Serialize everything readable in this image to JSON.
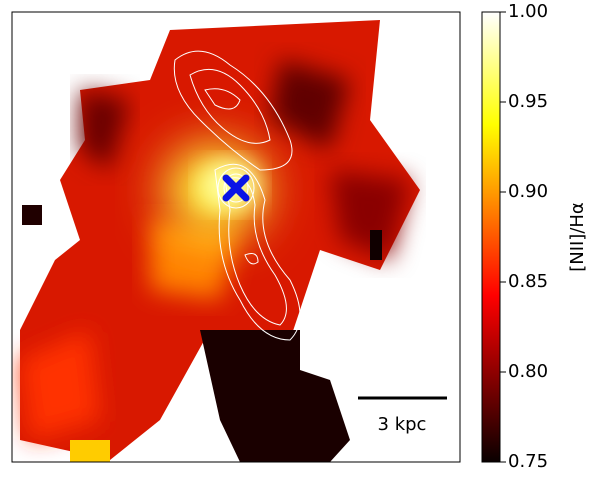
{
  "chart_data": {
    "type": "heatmap",
    "colormap": "hot",
    "colorbar": {
      "label": "[NII]/Hα",
      "lim": [
        0.75,
        1.0
      ],
      "ticks": [
        0.75,
        {
          "value": 0.8,
          "label": "0.80"
        },
        0.85,
        {
          "value": 0.9,
          "label": "0.90"
        },
        0.95,
        {
          "value": 1.0,
          "label": "1.00"
        }
      ]
    },
    "annotations": [
      "3 kpc"
    ]
  }
}
